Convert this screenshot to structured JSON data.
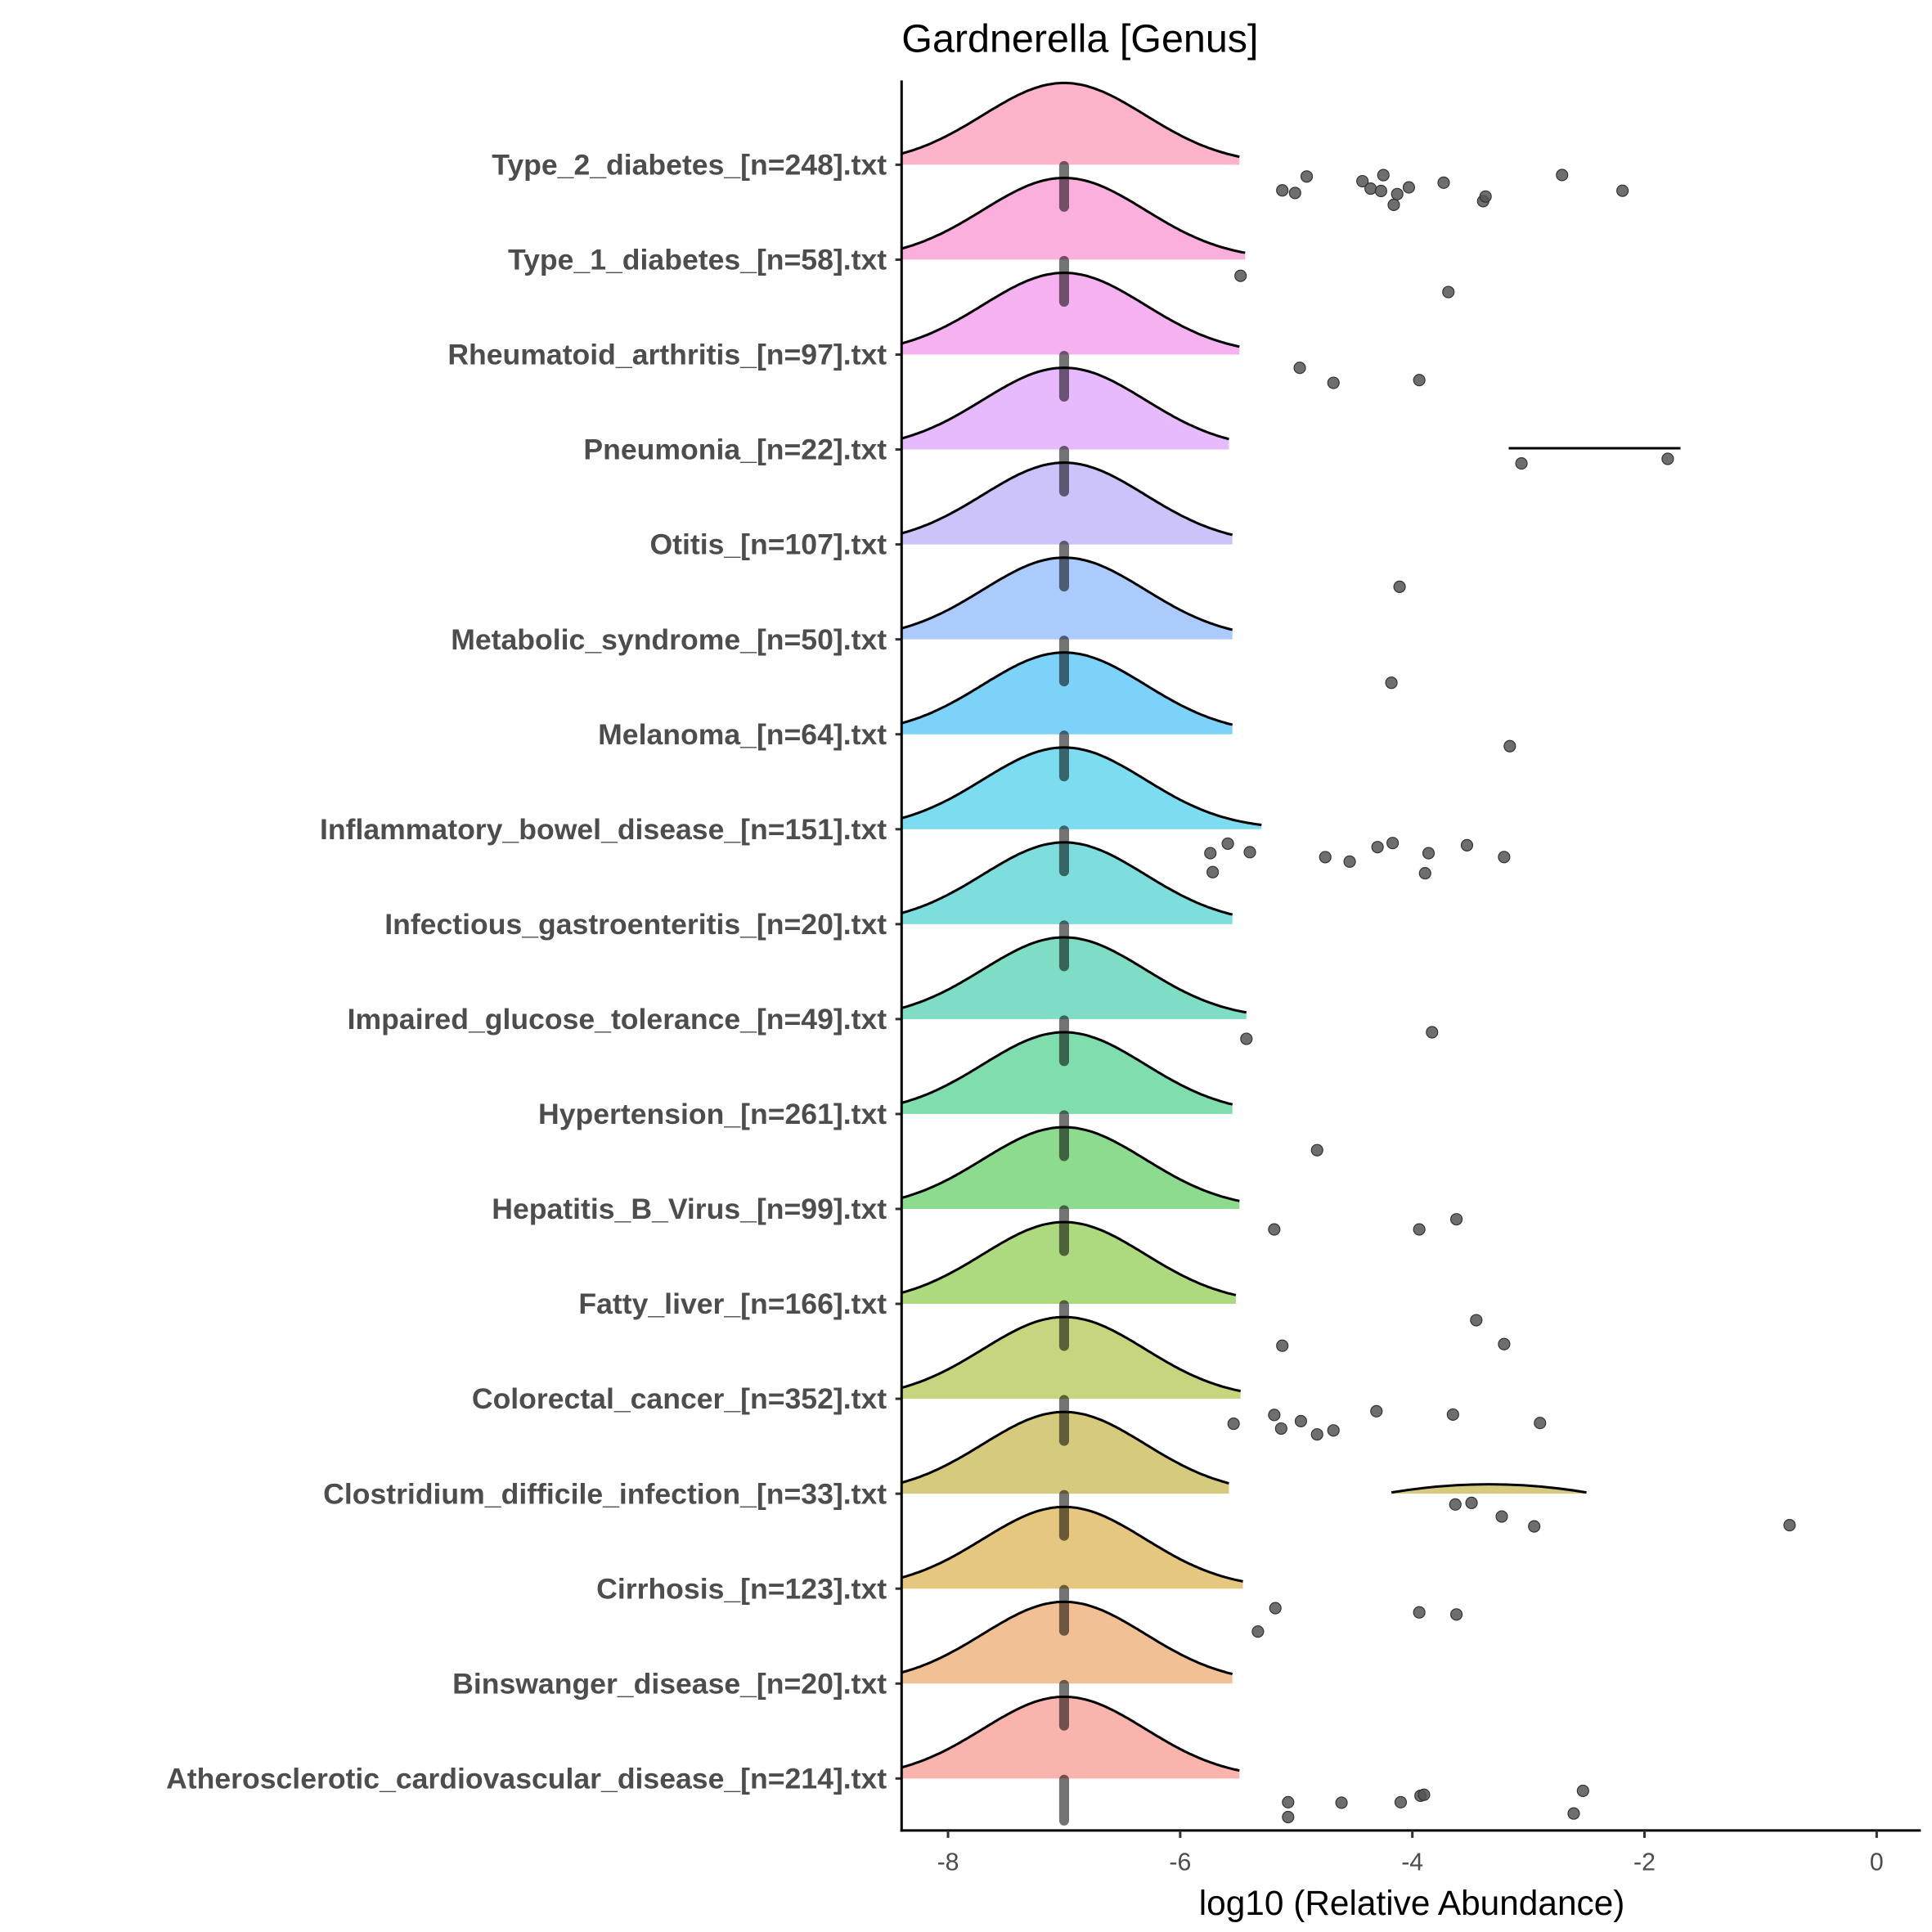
{
  "chart_data": {
    "type": "ridgeline",
    "title": "Gardnerella [Genus]",
    "xlabel": "log10 (Relative Abundance)",
    "ylabel": "",
    "xlim": [
      -8.4,
      0.37
    ],
    "xticks": [
      "-8",
      "-6",
      "-4",
      "-2",
      "0"
    ],
    "xtick_values": [
      -8,
      -6,
      -4,
      -2,
      0
    ],
    "grid": false,
    "legend": "none",
    "main_density": {
      "center": -7,
      "sd": 0.7
    },
    "zero_cluster_value": -7,
    "point_color": "#555555",
    "series": [
      {
        "label": "Type_2_diabetes_[n=248].txt",
        "color": "#FDB3C9",
        "density_end": -5.49,
        "points": [
          -5.12,
          -5.01,
          -4.91,
          -4.43,
          -4.36,
          -4.27,
          -4.25,
          -4.16,
          -4.13,
          -4.03,
          -3.73,
          -3.39,
          -3.37,
          -2.71,
          -2.19
        ]
      },
      {
        "label": "Type_1_diabetes_[n=58].txt",
        "color": "#FBAFDD",
        "density_end": -5.44,
        "points": [
          -5.48,
          -3.69
        ]
      },
      {
        "label": "Rheumatoid_arthritis_[n=97].txt",
        "color": "#F5B1F0",
        "density_end": -5.49,
        "points": [
          -4.97,
          -4.68,
          -3.94
        ]
      },
      {
        "label": "Pneumonia_[n=22].txt",
        "color": "#E6BAFC",
        "density_end": -5.58,
        "points": [
          -3.06,
          -1.8
        ],
        "flat_density": [
          -3.17,
          -1.69
        ]
      },
      {
        "label": "Otitis_[n=107].txt",
        "color": "#CCC3FB",
        "density_end": -5.55,
        "points": [
          -4.11
        ]
      },
      {
        "label": "Metabolic_syndrome_[n=50].txt",
        "color": "#ACCBFD",
        "density_end": -5.55,
        "points": [
          -4.18
        ]
      },
      {
        "label": "Melanoma_[n=64].txt",
        "color": "#7DD2F9",
        "density_end": -5.55,
        "points": [
          -3.16
        ]
      },
      {
        "label": "Inflammatory_bowel_disease_[n=151].txt",
        "color": "#7CDDF0",
        "density_end": -5.3,
        "points": [
          -5.74,
          -5.72,
          -5.59,
          -5.4,
          -4.75,
          -4.54,
          -4.3,
          -4.17,
          -3.89,
          -3.86,
          -3.53,
          -3.21
        ]
      },
      {
        "label": "Infectious_gastroenteritis_[n=20].txt",
        "color": "#7EDEDE",
        "density_end": -5.55,
        "points": []
      },
      {
        "label": "Impaired_glucose_tolerance_[n=49].txt",
        "color": "#7FDDC6",
        "density_end": -5.43,
        "points": [
          -5.43,
          -3.83
        ]
      },
      {
        "label": "Hypertension_[n=261].txt",
        "color": "#80DDAE",
        "density_end": -5.55,
        "points": [
          -4.82
        ]
      },
      {
        "label": "Hepatitis_B_Virus_[n=99].txt",
        "color": "#8DDB8F",
        "density_end": -5.49,
        "points": [
          -5.19,
          -3.94,
          -3.62
        ]
      },
      {
        "label": "Fatty_liver_[n=166].txt",
        "color": "#ADDA7F",
        "density_end": -5.52,
        "points": [
          -5.12,
          -3.45,
          -3.21
        ]
      },
      {
        "label": "Colorectal_cancer_[n=352].txt",
        "color": "#C6D57E",
        "density_end": -5.48,
        "points": [
          -5.54,
          -5.19,
          -5.13,
          -4.96,
          -4.82,
          -4.68,
          -4.31,
          -3.65,
          -2.9
        ]
      },
      {
        "label": "Clostridium_difficile_infection_[n=33].txt",
        "color": "#D6CA7D",
        "density_end": -5.58,
        "points": [
          -3.63,
          -3.49,
          -3.23,
          -2.95,
          -0.75
        ],
        "flat_density": [
          -4.18,
          -2.5
        ],
        "flat_bump": 0.1
      },
      {
        "label": "Cirrhosis_[n=123].txt",
        "color": "#E6C77F",
        "density_end": -5.46,
        "points": [
          -5.33,
          -5.18,
          -3.94,
          -3.62
        ]
      },
      {
        "label": "Binswanger_disease_[n=20].txt",
        "color": "#F1C094",
        "density_end": -5.55,
        "points": []
      },
      {
        "label": "Atherosclerotic_cardiovascular_disease_[n=214].txt",
        "color": "#F9B4AE",
        "density_end": -5.49,
        "points": [
          -5.07,
          -5.07,
          -4.61,
          -4.1,
          -3.93,
          -3.9,
          -2.61,
          -2.53
        ]
      }
    ]
  }
}
